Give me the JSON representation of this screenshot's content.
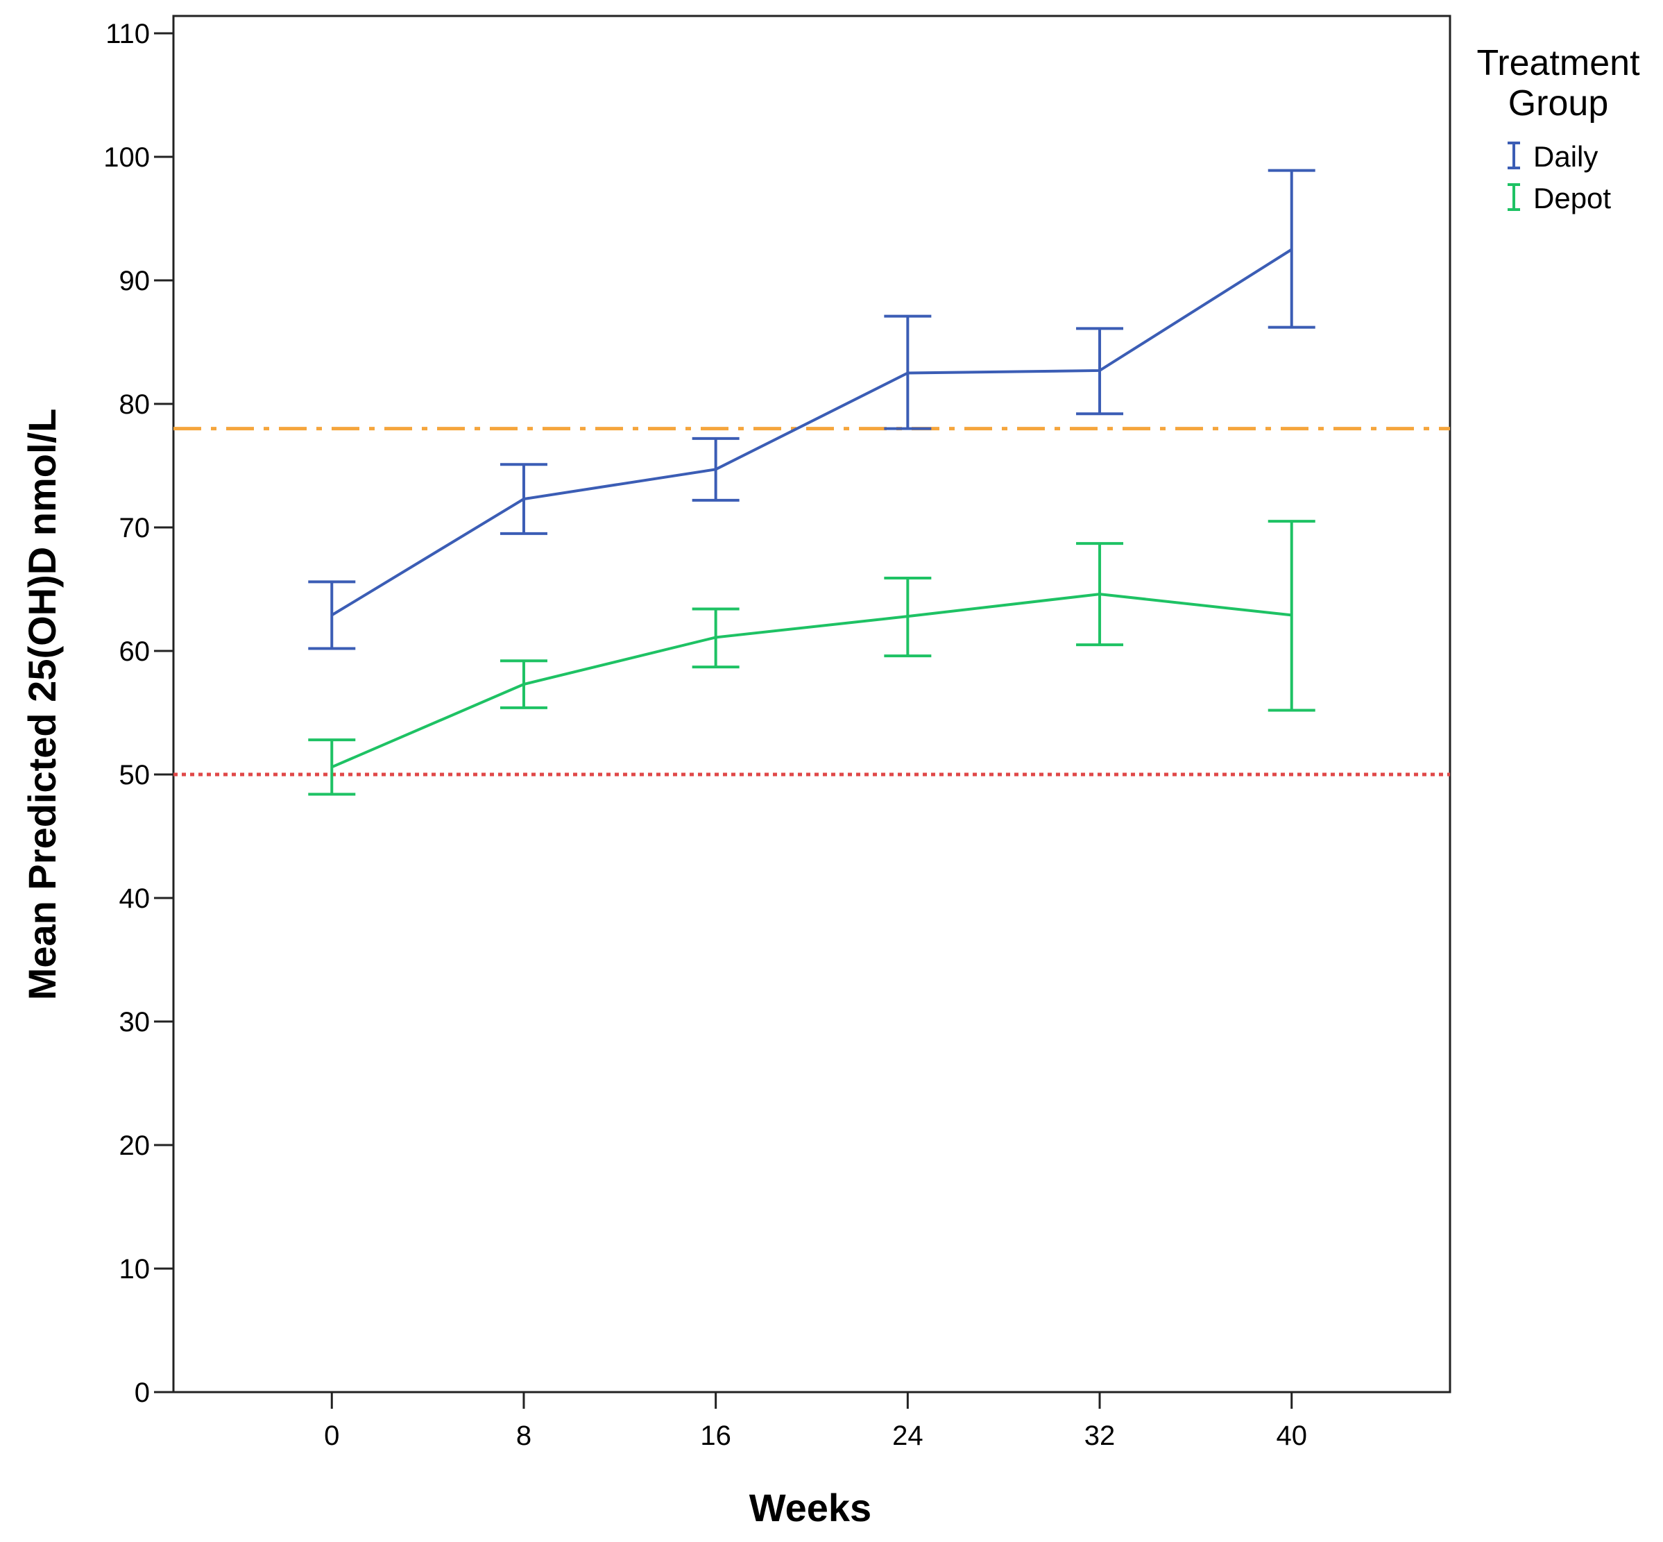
{
  "chart_data": {
    "type": "line",
    "title": "",
    "xlabel": "Weeks",
    "ylabel": "Mean Predicted 25(OH)D nmol/L",
    "x": [
      0,
      8,
      16,
      24,
      32,
      40
    ],
    "x_ticks": [
      "0",
      "8",
      "16",
      "24",
      "32",
      "40"
    ],
    "xlim": [
      -6.6,
      46.6
    ],
    "ylim": [
      0,
      110
    ],
    "y_ticks": [
      "0",
      "10",
      "20",
      "30",
      "40",
      "50",
      "60",
      "70",
      "80",
      "90",
      "100",
      "110"
    ],
    "grid": false,
    "legend": {
      "title_lines": [
        "Treatment",
        "Group"
      ],
      "placement": "right-top"
    },
    "series": [
      {
        "name": "Daily",
        "color": "#3b5db5",
        "values": [
          62.9,
          72.3,
          74.7,
          82.5,
          82.7,
          92.5
        ],
        "error_low": [
          60.2,
          69.5,
          72.2,
          78.0,
          79.2,
          86.2
        ],
        "error_high": [
          65.6,
          75.1,
          77.2,
          87.1,
          86.1,
          98.9
        ]
      },
      {
        "name": "Depot",
        "color": "#1ec264",
        "values": [
          50.6,
          57.3,
          61.1,
          62.8,
          64.6,
          62.9
        ],
        "error_low": [
          48.4,
          55.4,
          58.7,
          59.6,
          60.5,
          55.2
        ],
        "error_high": [
          52.8,
          59.2,
          63.4,
          65.9,
          68.7,
          70.5
        ]
      }
    ],
    "reference_lines": [
      {
        "value": 78,
        "style": "dash-dot",
        "color": "#f5a53c"
      },
      {
        "value": 50,
        "style": "dotted",
        "color": "#e04848"
      }
    ]
  }
}
